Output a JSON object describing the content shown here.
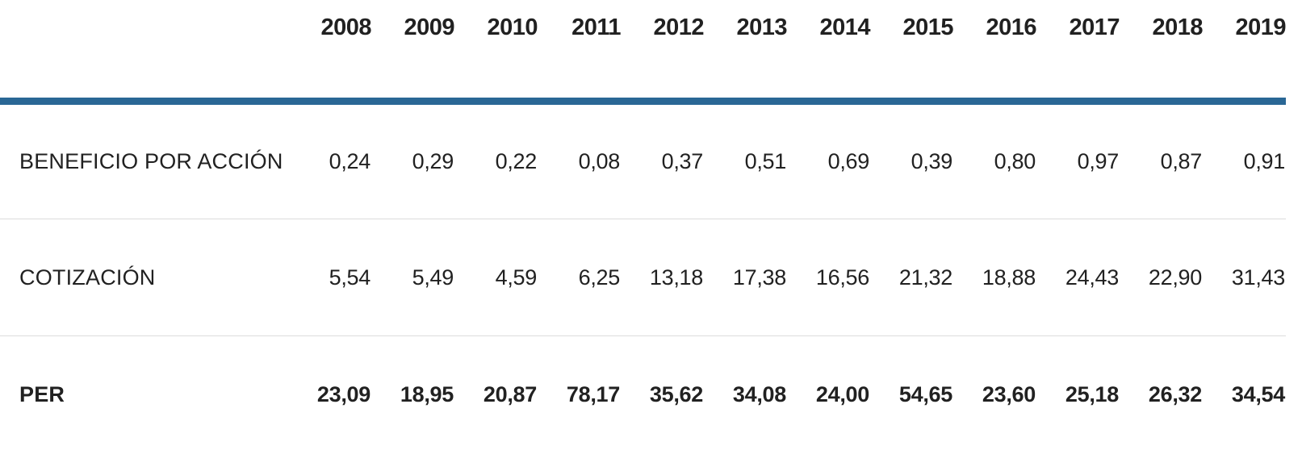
{
  "table": {
    "header": {
      "corner_label": "",
      "years": [
        "2008",
        "2009",
        "2010",
        "2011",
        "2012",
        "2013",
        "2014",
        "2015",
        "2016",
        "2017",
        "2018",
        "2019"
      ]
    },
    "rows": [
      {
        "label": "BENEFICIO POR ACCIÓN",
        "emphasis": false,
        "values": [
          "0,24",
          "0,29",
          "0,22",
          "0,08",
          "0,37",
          "0,51",
          "0,69",
          "0,39",
          "0,80",
          "0,97",
          "0,87",
          "0,91"
        ]
      },
      {
        "label": "COTIZACIÓN",
        "emphasis": false,
        "values": [
          "5,54",
          "5,49",
          "4,59",
          "6,25",
          "13,18",
          "17,38",
          "16,56",
          "21,32",
          "18,88",
          "24,43",
          "22,90",
          "31,43"
        ]
      },
      {
        "label": "PER",
        "emphasis": true,
        "values": [
          "23,09",
          "18,95",
          "20,87",
          "78,17",
          "35,62",
          "34,08",
          "24,00",
          "54,65",
          "23,60",
          "25,18",
          "26,32",
          "34,54"
        ]
      }
    ],
    "colors": {
      "accent_line": "#2a6795",
      "row_divider": "#dcdcdc",
      "text": "#212121"
    }
  },
  "chart_data": {
    "type": "table",
    "title": "",
    "xlabel": "",
    "ylabel": "",
    "categories": [
      2008,
      2009,
      2010,
      2011,
      2012,
      2013,
      2014,
      2015,
      2016,
      2017,
      2018,
      2019
    ],
    "series": [
      {
        "name": "BENEFICIO POR ACCIÓN",
        "values": [
          0.24,
          0.29,
          0.22,
          0.08,
          0.37,
          0.51,
          0.69,
          0.39,
          0.8,
          0.97,
          0.87,
          0.91
        ]
      },
      {
        "name": "COTIZACIÓN",
        "values": [
          5.54,
          5.49,
          4.59,
          6.25,
          13.18,
          17.38,
          16.56,
          21.32,
          18.88,
          24.43,
          22.9,
          31.43
        ]
      },
      {
        "name": "PER",
        "values": [
          23.09,
          18.95,
          20.87,
          78.17,
          35.62,
          34.08,
          24.0,
          54.65,
          23.6,
          25.18,
          26.32,
          34.54
        ]
      }
    ],
    "layout_hints": {
      "decimal_separator": ",",
      "value_alignment": "right",
      "header_rule_color": "#2a6795",
      "row_divider_color": "#dcdcdc",
      "bold_rows": [
        "PER"
      ]
    }
  }
}
